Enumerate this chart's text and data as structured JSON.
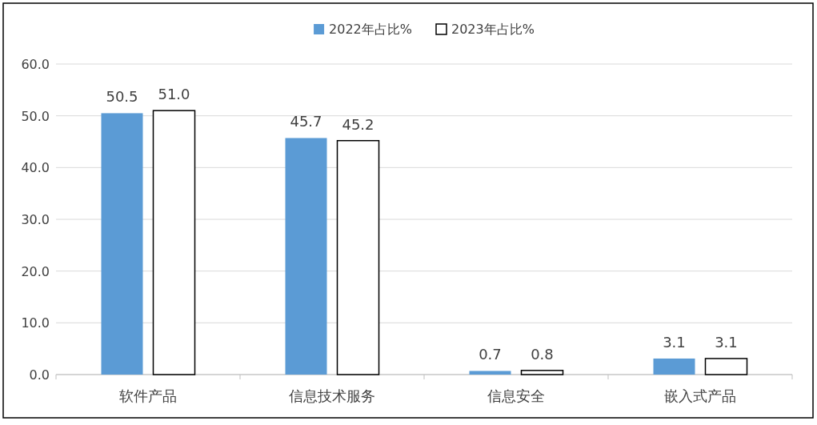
{
  "chart_data": {
    "type": "bar",
    "categories": [
      "软件产品",
      "信息技术服务",
      "信息安全",
      "嵌入式产品"
    ],
    "series": [
      {
        "name": "2022年占比%",
        "color": "#5b9bd5",
        "values": [
          50.5,
          45.7,
          0.7,
          3.1
        ],
        "value_labels": [
          "50.5",
          "45.7",
          "0.7",
          "3.1"
        ]
      },
      {
        "name": "2023年占比%",
        "color": "#ffffff",
        "values": [
          51.0,
          45.2,
          0.8,
          3.1
        ],
        "value_labels": [
          "51.0",
          "45.2",
          "0.8",
          "3.1"
        ]
      }
    ],
    "ylim": [
      0,
      60
    ],
    "yticks": [
      {
        "value": 0,
        "label": "0.0"
      },
      {
        "value": 10,
        "label": "10.0"
      },
      {
        "value": 20,
        "label": "20.0"
      },
      {
        "value": 30,
        "label": "30.0"
      },
      {
        "value": 40,
        "label": "40.0"
      },
      {
        "value": 50,
        "label": "50.0"
      },
      {
        "value": 60,
        "label": "60.0"
      }
    ],
    "grid": "y",
    "legend": "top"
  }
}
